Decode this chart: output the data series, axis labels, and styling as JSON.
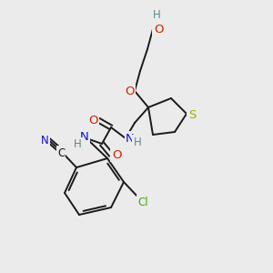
{
  "bg_color": "#ebebeb",
  "bond_color": "#1a1a1a",
  "bond_width": 1.4,
  "atom_colors": {
    "C": "#1a1a1a",
    "H": "#5a8888",
    "O": "#cc2200",
    "N": "#1111cc",
    "S": "#aaaa00",
    "Cl": "#44aa00",
    "N_cyan": "#1111cc"
  },
  "font_size": 9.5
}
